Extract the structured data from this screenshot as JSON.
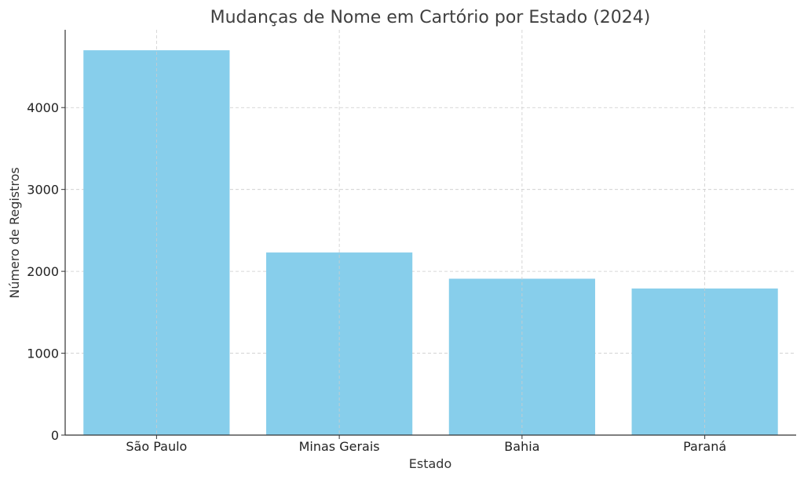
{
  "chart_data": {
    "type": "bar",
    "title": "Mudanças de Nome em Cartório por Estado (2024)",
    "xlabel": "Estado",
    "ylabel": "Número de Registros",
    "categories": [
      "São Paulo",
      "Minas Gerais",
      "Bahia",
      "Paraná"
    ],
    "values": [
      4700,
      2230,
      1910,
      1790
    ],
    "ylim": [
      0,
      4950
    ],
    "yticks": [
      0,
      1000,
      2000,
      3000,
      4000
    ],
    "grid": true,
    "bar_color": "#87CEEB"
  }
}
